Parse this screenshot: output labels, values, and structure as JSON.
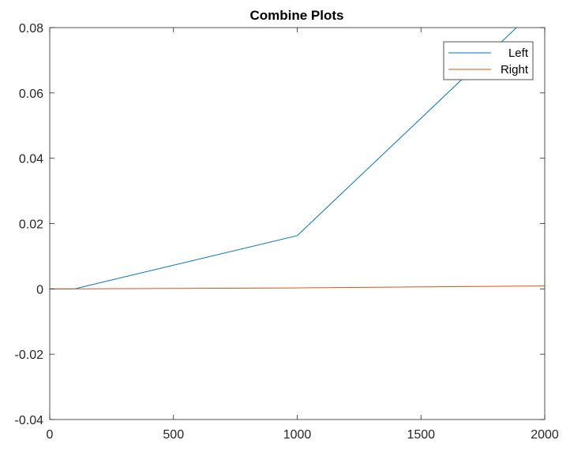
{
  "chart_data": {
    "type": "line",
    "title": "Combine Plots",
    "xlabel": "",
    "ylabel": "",
    "xlim": [
      0,
      2000
    ],
    "ylim": [
      -0.04,
      0.08
    ],
    "x_ticks": [
      "0",
      "500",
      "1000",
      "1500",
      "2000"
    ],
    "x_tick_values": [
      0,
      500,
      1000,
      1500,
      2000
    ],
    "y_ticks": [
      "-0.04",
      "-0.02",
      "0",
      "0.02",
      "0.04",
      "0.06",
      "0.08"
    ],
    "y_tick_values": [
      -0.04,
      -0.02,
      0,
      0.02,
      0.04,
      0.06,
      0.08
    ],
    "grid": false,
    "legend_position": "top-right",
    "series": [
      {
        "name": "Left",
        "color": "#0072BD",
        "points": [
          [
            0,
            0
          ],
          [
            100,
            0
          ],
          [
            1000,
            0.0163
          ],
          [
            1900,
            0.081
          ]
        ]
      },
      {
        "name": "Right",
        "color": "#D95319",
        "points": [
          [
            0,
            0
          ],
          [
            1000,
            0.0003
          ],
          [
            2000,
            0.0009
          ]
        ]
      }
    ]
  }
}
